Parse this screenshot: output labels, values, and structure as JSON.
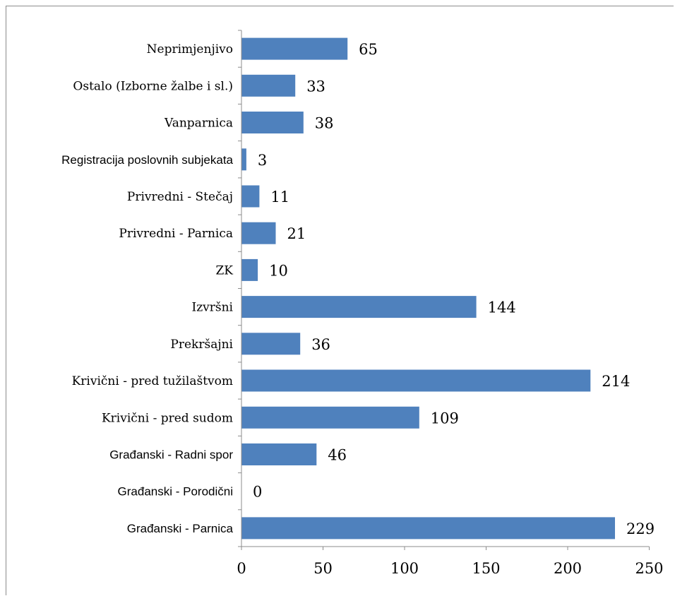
{
  "chart_data": {
    "type": "bar",
    "orientation": "horizontal",
    "categories": [
      "Neprimjenjivo",
      "Ostalo (Izborne žalbe i sl.)",
      "Vanparnica",
      "Registracija poslovnih subjekata",
      "Privredni - Stečaj",
      "Privredni - Parnica",
      "ZK",
      "Izvršni",
      "Prekršajni",
      "Krivični - pred tužilaštvom",
      "Krivični - pred sudom",
      "Građanski - Radni spor",
      "Građanski - Porodični",
      "Građanski - Parnica"
    ],
    "values": [
      65,
      33,
      38,
      3,
      11,
      21,
      10,
      144,
      36,
      214,
      109,
      46,
      0,
      229
    ],
    "xlim": [
      0,
      250
    ],
    "xticks": [
      0,
      50,
      100,
      150,
      200,
      250
    ],
    "title": "",
    "xlabel": "",
    "ylabel": "",
    "grid": false,
    "legend": "none",
    "bar_color": "#4f81bd",
    "axis_color": "#8c8c8c"
  }
}
